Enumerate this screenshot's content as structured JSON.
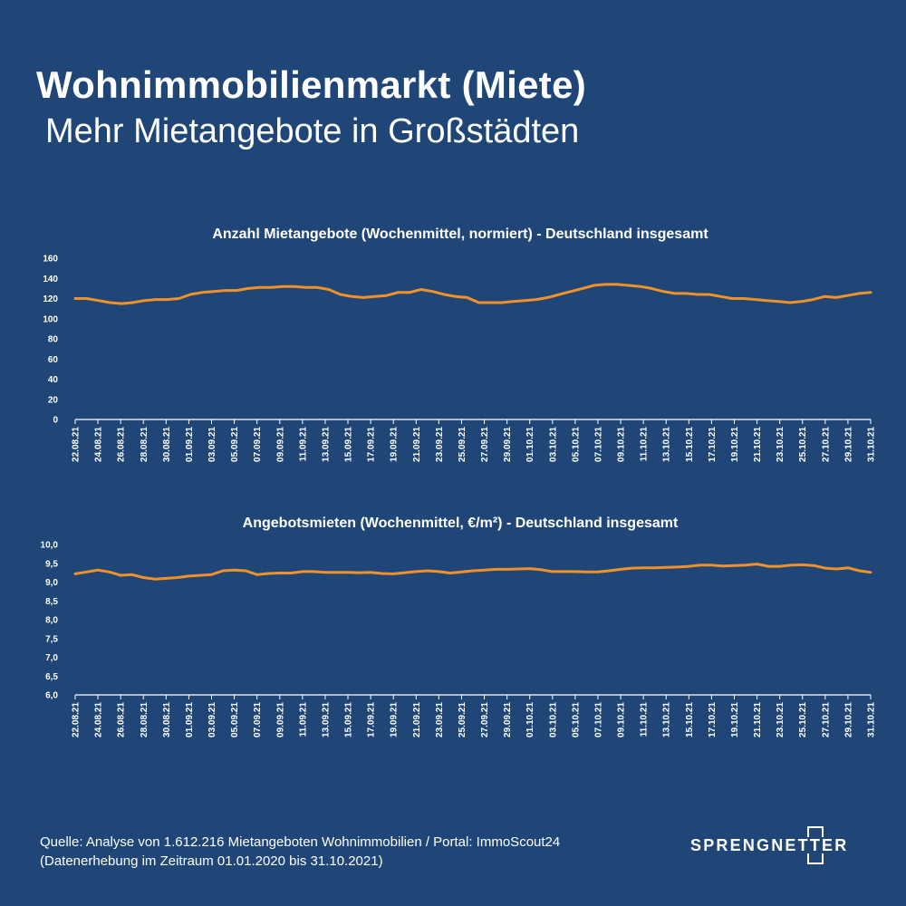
{
  "title": "Wohnimmobilienmarkt (Miete)",
  "subtitle": "Mehr Mietangebote in Großstädten",
  "colors": {
    "background": "#1f4677",
    "line": "#f0912a",
    "text": "#ffffff"
  },
  "footer": {
    "source_line1": "Quelle: Analyse von 1.612.216 Mietangeboten Wohnimmobilien / Portal: ImmoScout24",
    "source_line2": "(Datenerhebung im Zeitraum 01.01.2020 bis  31.10.2021)",
    "logo_text": "SPRENGNETTER"
  },
  "chart_data": [
    {
      "type": "line",
      "title": "Anzahl Mietangebote (Wochenmittel, normiert) - Deutschland insgesamt",
      "ylim": [
        0,
        160
      ],
      "yticks": [
        "0",
        "20",
        "40",
        "60",
        "80",
        "100",
        "120",
        "140",
        "160"
      ],
      "xtick_labels": [
        "22.08.21",
        "24.08.21",
        "26.08.21",
        "28.08.21",
        "30.08.21",
        "01.09.21",
        "03.09.21",
        "05.09.21",
        "07.09.21",
        "09.09.21",
        "11.09.21",
        "13.09.21",
        "15.09.21",
        "17.09.21",
        "19.09.21",
        "21.09.21",
        "23.09.21",
        "25.09.21",
        "27.09.21",
        "29.09.21",
        "01.10.21",
        "03.10.21",
        "05.10.21",
        "07.10.21",
        "09.10.21",
        "11.10.21",
        "13.10.21",
        "15.10.21",
        "17.10.21",
        "19.10.21",
        "21.10.21",
        "23.10.21",
        "25.10.21",
        "27.10.21",
        "29.10.21",
        "31.10.21"
      ],
      "series": [
        {
          "values": [
            120,
            120,
            118,
            116,
            115,
            116,
            118,
            119,
            119,
            120,
            124,
            126,
            127,
            128,
            128,
            130,
            131,
            131,
            132,
            132,
            131,
            131,
            129,
            124,
            122,
            121,
            122,
            123,
            126,
            126,
            129,
            127,
            124,
            122,
            121,
            116,
            116,
            116,
            117,
            118,
            119,
            121,
            124,
            127,
            130,
            133,
            134,
            134,
            133,
            132,
            130,
            127,
            125,
            125,
            124,
            124,
            122,
            120,
            120,
            119,
            118,
            117,
            116,
            117,
            119,
            122,
            121,
            123,
            125,
            126
          ]
        }
      ]
    },
    {
      "type": "line",
      "title": "Angebotsmieten (Wochenmittel, €/m²) - Deutschland insgesamt",
      "ylim": [
        6.0,
        10.0
      ],
      "yticks": [
        "6,0",
        "6,5",
        "7,0",
        "7,5",
        "8,0",
        "8,5",
        "9,0",
        "9,5",
        "10,0"
      ],
      "xtick_labels": [
        "22.08.21",
        "24.08.21",
        "26.08.21",
        "28.08.21",
        "30.08.21",
        "01.09.21",
        "03.09.21",
        "05.09.21",
        "07.09.21",
        "09.09.21",
        "11.09.21",
        "13.09.21",
        "15.09.21",
        "17.09.21",
        "19.09.21",
        "21.09.21",
        "23.09.21",
        "25.09.21",
        "27.09.21",
        "29.09.21",
        "01.10.21",
        "03.10.21",
        "05.10.21",
        "07.10.21",
        "09.10.21",
        "11.10.21",
        "13.10.21",
        "15.10.21",
        "17.10.21",
        "19.10.21",
        "21.10.21",
        "23.10.21",
        "25.10.21",
        "27.10.21",
        "29.10.21",
        "31.10.21"
      ],
      "series": [
        {
          "values": [
            9.22,
            9.27,
            9.32,
            9.27,
            9.18,
            9.2,
            9.12,
            9.08,
            9.1,
            9.12,
            9.16,
            9.18,
            9.2,
            9.3,
            9.32,
            9.3,
            9.2,
            9.23,
            9.24,
            9.24,
            9.28,
            9.28,
            9.26,
            9.26,
            9.26,
            9.25,
            9.26,
            9.23,
            9.22,
            9.25,
            9.28,
            9.3,
            9.28,
            9.24,
            9.27,
            9.3,
            9.32,
            9.34,
            9.34,
            9.35,
            9.36,
            9.33,
            9.28,
            9.28,
            9.28,
            9.27,
            9.27,
            9.3,
            9.34,
            9.37,
            9.38,
            9.38,
            9.39,
            9.4,
            9.42,
            9.45,
            9.45,
            9.43,
            9.44,
            9.45,
            9.48,
            9.42,
            9.42,
            9.45,
            9.46,
            9.44,
            9.37,
            9.35,
            9.38,
            9.3,
            9.26
          ]
        }
      ]
    }
  ]
}
